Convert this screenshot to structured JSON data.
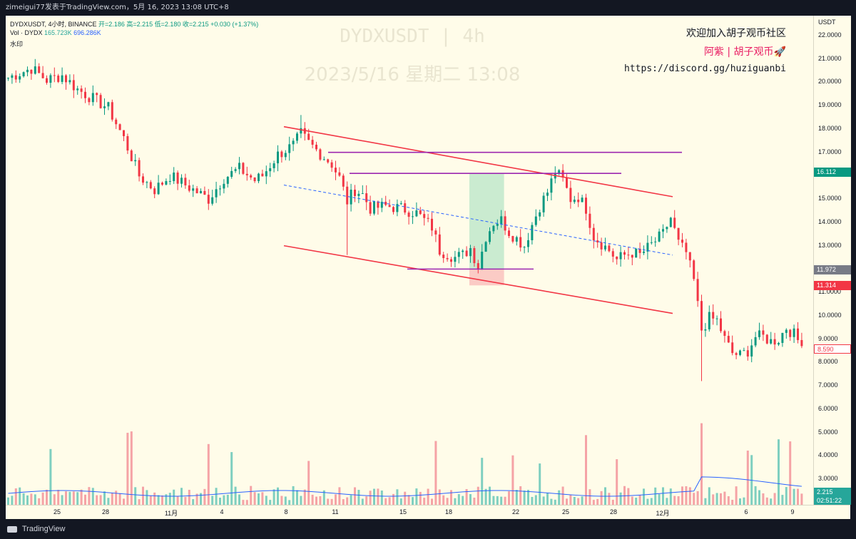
{
  "header": {
    "publisher": "zimeigui77发表于TradingView.com，5月 16, 2023 13:08 UTC+8"
  },
  "legend": {
    "line1": "DYDXUSDT, 4小时, BINANCE",
    "ohlc": "开=2.186 高=2.215 低=2.180 收=2.215 +0.030 (+1.37%)",
    "vol_label": "Vol · DYDX",
    "vol_value": "165.723K",
    "vol_ma": "696.286K",
    "watermark_label": "水印"
  },
  "watermark": {
    "symbol": "DYDXUSDT | 4h",
    "datetime": "2023/5/16 星期二 13:08"
  },
  "promo": {
    "line1": "欢迎加入胡子观币社区",
    "line2": "阿紫 | 胡子观币🚀",
    "line3": "https://discord.gg/huziguanbi"
  },
  "price_axis": {
    "currency": "USDT",
    "ticks": [
      "22.0000",
      "21.0000",
      "20.0000",
      "19.0000",
      "18.0000",
      "17.0000",
      "15.0000",
      "14.0000",
      "13.0000",
      "11.0000",
      "10.0000",
      "9.0000",
      "8.0000",
      "7.0000",
      "6.0000",
      "5.0000",
      "4.0000",
      "3.0000"
    ],
    "tag_upper": {
      "value": "16.112",
      "color": "#089981"
    },
    "tag_mid": {
      "value": "11.972",
      "color": "#787b86"
    },
    "tag_lower": {
      "value": "11.314",
      "color": "#f23645"
    },
    "tag_last": {
      "value": "8.590",
      "color": "#f23645"
    },
    "tag_vol": {
      "value": "2.215",
      "color": "#26a69a"
    },
    "countdown": "02:51:22"
  },
  "time_axis": {
    "labels": [
      "25",
      "28",
      "11月",
      "4",
      "8",
      "11",
      "15",
      "18",
      "22",
      "25",
      "28",
      "12月",
      "6",
      "9"
    ]
  },
  "footer": {
    "brand": "TradingView"
  },
  "chart_data": {
    "type": "candlestick",
    "symbol": "DYDXUSDT",
    "interval": "4h",
    "exchange": "BINANCE",
    "currency": "USDT",
    "ylim": [
      2,
      22.5
    ],
    "x_labels": [
      "25",
      "28",
      "11月",
      "4",
      "8",
      "11",
      "15",
      "18",
      "22",
      "25",
      "28",
      "12月",
      "6",
      "9"
    ],
    "key_prices": {
      "last": 8.59,
      "upper_zone": 16.112,
      "mid_marker": 11.972,
      "lower_zone": 11.314
    },
    "price_path": [
      [
        0,
        20.2
      ],
      [
        6,
        20.6
      ],
      [
        10,
        20.1
      ],
      [
        14,
        20.3
      ],
      [
        18,
        19.7
      ],
      [
        22,
        19.3
      ],
      [
        26,
        18.9
      ],
      [
        30,
        17.6
      ],
      [
        34,
        16.0
      ],
      [
        38,
        15.4
      ],
      [
        42,
        16.0
      ],
      [
        46,
        15.6
      ],
      [
        52,
        15.0
      ],
      [
        56,
        15.9
      ],
      [
        60,
        16.3
      ],
      [
        64,
        15.8
      ],
      [
        66,
        16.0
      ],
      [
        70,
        16.9
      ],
      [
        74,
        17.3
      ],
      [
        76,
        17.8
      ],
      [
        78,
        17.4
      ],
      [
        82,
        16.8
      ],
      [
        84,
        16.5
      ],
      [
        86,
        15.9
      ],
      [
        88,
        14.9
      ],
      [
        90,
        15.4
      ],
      [
        92,
        15.2
      ],
      [
        94,
        14.6
      ],
      [
        98,
        14.7
      ],
      [
        102,
        14.6
      ],
      [
        106,
        14.4
      ],
      [
        110,
        13.8
      ],
      [
        112,
        12.8
      ],
      [
        116,
        12.5
      ],
      [
        118,
        12.6
      ],
      [
        120,
        12.9
      ],
      [
        122,
        12.1
      ],
      [
        124,
        13.4
      ],
      [
        126,
        14.0
      ],
      [
        128,
        14.1
      ],
      [
        130,
        13.6
      ],
      [
        134,
        13.0
      ],
      [
        136,
        13.9
      ],
      [
        138,
        14.7
      ],
      [
        140,
        15.3
      ],
      [
        142,
        16.2
      ],
      [
        144,
        15.8
      ],
      [
        146,
        15.0
      ],
      [
        148,
        15.1
      ],
      [
        150,
        14.6
      ],
      [
        152,
        13.4
      ],
      [
        154,
        13.1
      ],
      [
        156,
        12.8
      ],
      [
        158,
        12.4
      ],
      [
        160,
        12.6
      ],
      [
        162,
        12.7
      ],
      [
        164,
        12.6
      ],
      [
        166,
        12.9
      ],
      [
        168,
        13.2
      ],
      [
        170,
        13.5
      ],
      [
        172,
        14.2
      ],
      [
        174,
        13.1
      ],
      [
        176,
        12.7
      ],
      [
        178,
        11.5
      ],
      [
        180,
        9.4
      ],
      [
        182,
        9.9
      ],
      [
        184,
        9.8
      ],
      [
        186,
        9.0
      ],
      [
        188,
        8.4
      ],
      [
        190,
        8.3
      ],
      [
        192,
        8.5
      ],
      [
        194,
        9.1
      ],
      [
        196,
        9.1
      ],
      [
        198,
        8.9
      ],
      [
        200,
        9.0
      ],
      [
        202,
        9.5
      ],
      [
        204,
        9.2
      ],
      [
        206,
        8.7
      ]
    ],
    "drawings": {
      "channel_upper": {
        "from": [
          0,
          18.1
        ],
        "to": [
          85,
          15.1
        ],
        "color": "#f23645"
      },
      "channel_lower": {
        "from": [
          0,
          13.0
        ],
        "to": [
          85,
          10.1
        ],
        "color": "#f23645"
      },
      "channel_mid": {
        "from": [
          0,
          15.6
        ],
        "to": [
          85,
          12.6
        ],
        "color": "#2962ff",
        "style": "dashed"
      },
      "resistance_1": {
        "price": 17.0,
        "color": "#9c27b0"
      },
      "resistance_2": {
        "price": 16.1,
        "color": "#9c27b0"
      },
      "support": {
        "price": 12.0,
        "color": "#9c27b0"
      },
      "position": {
        "entry": 12.0,
        "target": 16.1,
        "stop": 11.3
      }
    }
  }
}
